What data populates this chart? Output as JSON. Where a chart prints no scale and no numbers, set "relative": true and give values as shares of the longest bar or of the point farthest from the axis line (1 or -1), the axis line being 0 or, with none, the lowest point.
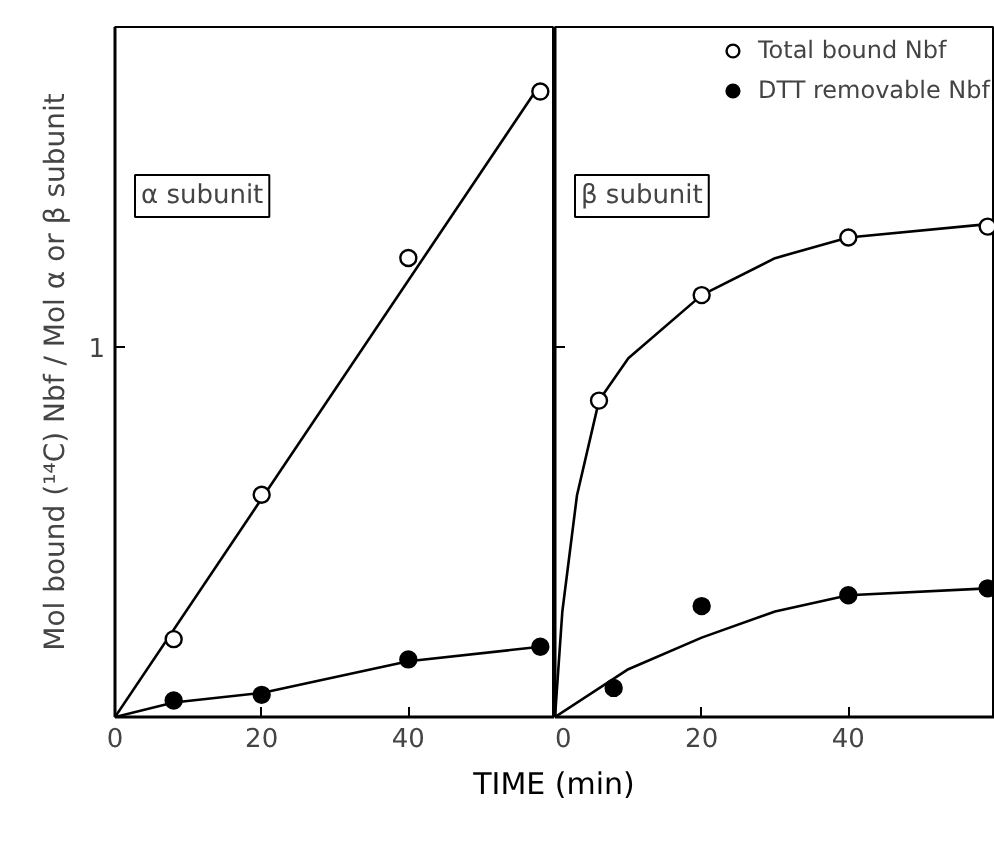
{
  "chart_data": [
    {
      "type": "scatter",
      "relative": true,
      "ylabel": "Mol bound (¹⁴C) Nbf / Mol α or β subunit",
      "xlabel": "TIME (min)",
      "annotations": [
        "α subunit",
        "1"
      ],
      "xlim": [
        0,
        60
      ],
      "xticks": [
        0,
        20,
        40
      ],
      "grid": false,
      "legend": false,
      "series": [
        {
          "type": "line",
          "color": "#000000",
          "x": [
            0,
            58
          ],
          "values": [
            0,
            1
          ]
        },
        {
          "type": "line",
          "color": "#000000",
          "x": [
            0,
            8,
            20,
            40,
            58
          ],
          "values": [
            0,
            0.023,
            0.038,
            0.088,
            0.111
          ]
        },
        {
          "marker": "circle",
          "color": "#ffffff",
          "x": [
            8,
            20,
            40,
            58
          ],
          "values": [
            0.123,
            0.351,
            0.725,
            0.988
          ]
        },
        {
          "marker": "circle",
          "color": "#000000",
          "x": [
            8,
            20,
            40,
            58
          ],
          "values": [
            0.026,
            0.035,
            0.091,
            0.111
          ]
        }
      ]
    },
    {
      "type": "scatter",
      "relative": true,
      "annotations": [
        "β subunit"
      ],
      "xlim": [
        0,
        60
      ],
      "xticks": [
        0,
        20,
        40
      ],
      "grid": false,
      "legend": "top right",
      "series": [
        {
          "type": "line",
          "color": "#000000",
          "x": [
            0,
            1,
            3,
            6,
            10,
            20,
            30,
            40,
            59
          ],
          "values": [
            0,
            0.214,
            0.45,
            0.642,
            0.728,
            0.856,
            0.931,
            0.973,
            1
          ]
        },
        {
          "type": "line",
          "color": "#000000",
          "x": [
            0,
            10,
            20,
            30,
            40,
            59
          ],
          "values": [
            0,
            0.097,
            0.161,
            0.214,
            0.247,
            0.261
          ]
        },
        {
          "name": "Total bound Nbf",
          "marker": "circle",
          "color": "#ffffff",
          "x": [
            6,
            20,
            40,
            59
          ],
          "values": [
            0.642,
            0.856,
            0.973,
            0.995
          ]
        },
        {
          "name": "DTT removable Nbf",
          "marker": "circle",
          "color": "#000000",
          "x": [
            8,
            20,
            40,
            59
          ],
          "values": [
            0.059,
            0.225,
            0.247,
            0.261
          ]
        }
      ]
    }
  ]
}
